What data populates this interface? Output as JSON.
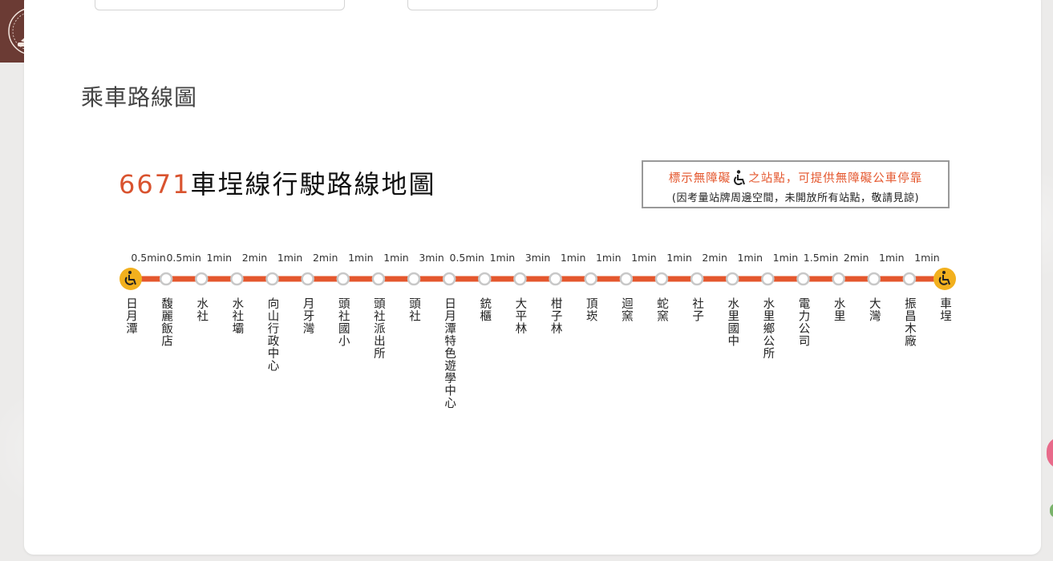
{
  "section_title": "乘車路線圖",
  "map": {
    "route_number": "6671",
    "route_title": "車埕線行駛路線地圖",
    "notice_line1_prefix": "標示無障礙",
    "notice_line1_suffix": "之站點，可提供無障礙公車停靠",
    "notice_line2": "(因考量站牌周邊空間，未開放所有站點，敬請見諒)",
    "stops": [
      "日月潭",
      "馥麗飯店",
      "水社",
      "水社壩",
      "向山行政中心",
      "月牙灣",
      "頭社國小",
      "頭社派出所",
      "頭社",
      "日月潭特色遊學中心",
      "銃櫃",
      "大平林",
      "柑子林",
      "頂崁",
      "迴窯",
      "蛇窯",
      "社子",
      "水里國中",
      "水里鄉公所",
      "電力公司",
      "水里",
      "大灣",
      "振昌木廠",
      "車埕"
    ],
    "times": [
      "0.5min",
      "0.5min",
      "1min",
      "2min",
      "1min",
      "2min",
      "1min",
      "1min",
      "3min",
      "0.5min",
      "1min",
      "3min",
      "1min",
      "1min",
      "1min",
      "1min",
      "2min",
      "1min",
      "1min",
      "1.5min",
      "2min",
      "1min",
      "1min"
    ],
    "accessible_stops": [
      0,
      23
    ],
    "colors": {
      "line": "#e4572e",
      "accessible": "#f2b01e",
      "stop_fill": "#ffffff",
      "stop_stroke": "#c8c8c8",
      "accent": "#d9532f"
    }
  },
  "icons": {
    "logo": "brand-logo-icon",
    "wheelchair": "wheelchair-icon"
  }
}
